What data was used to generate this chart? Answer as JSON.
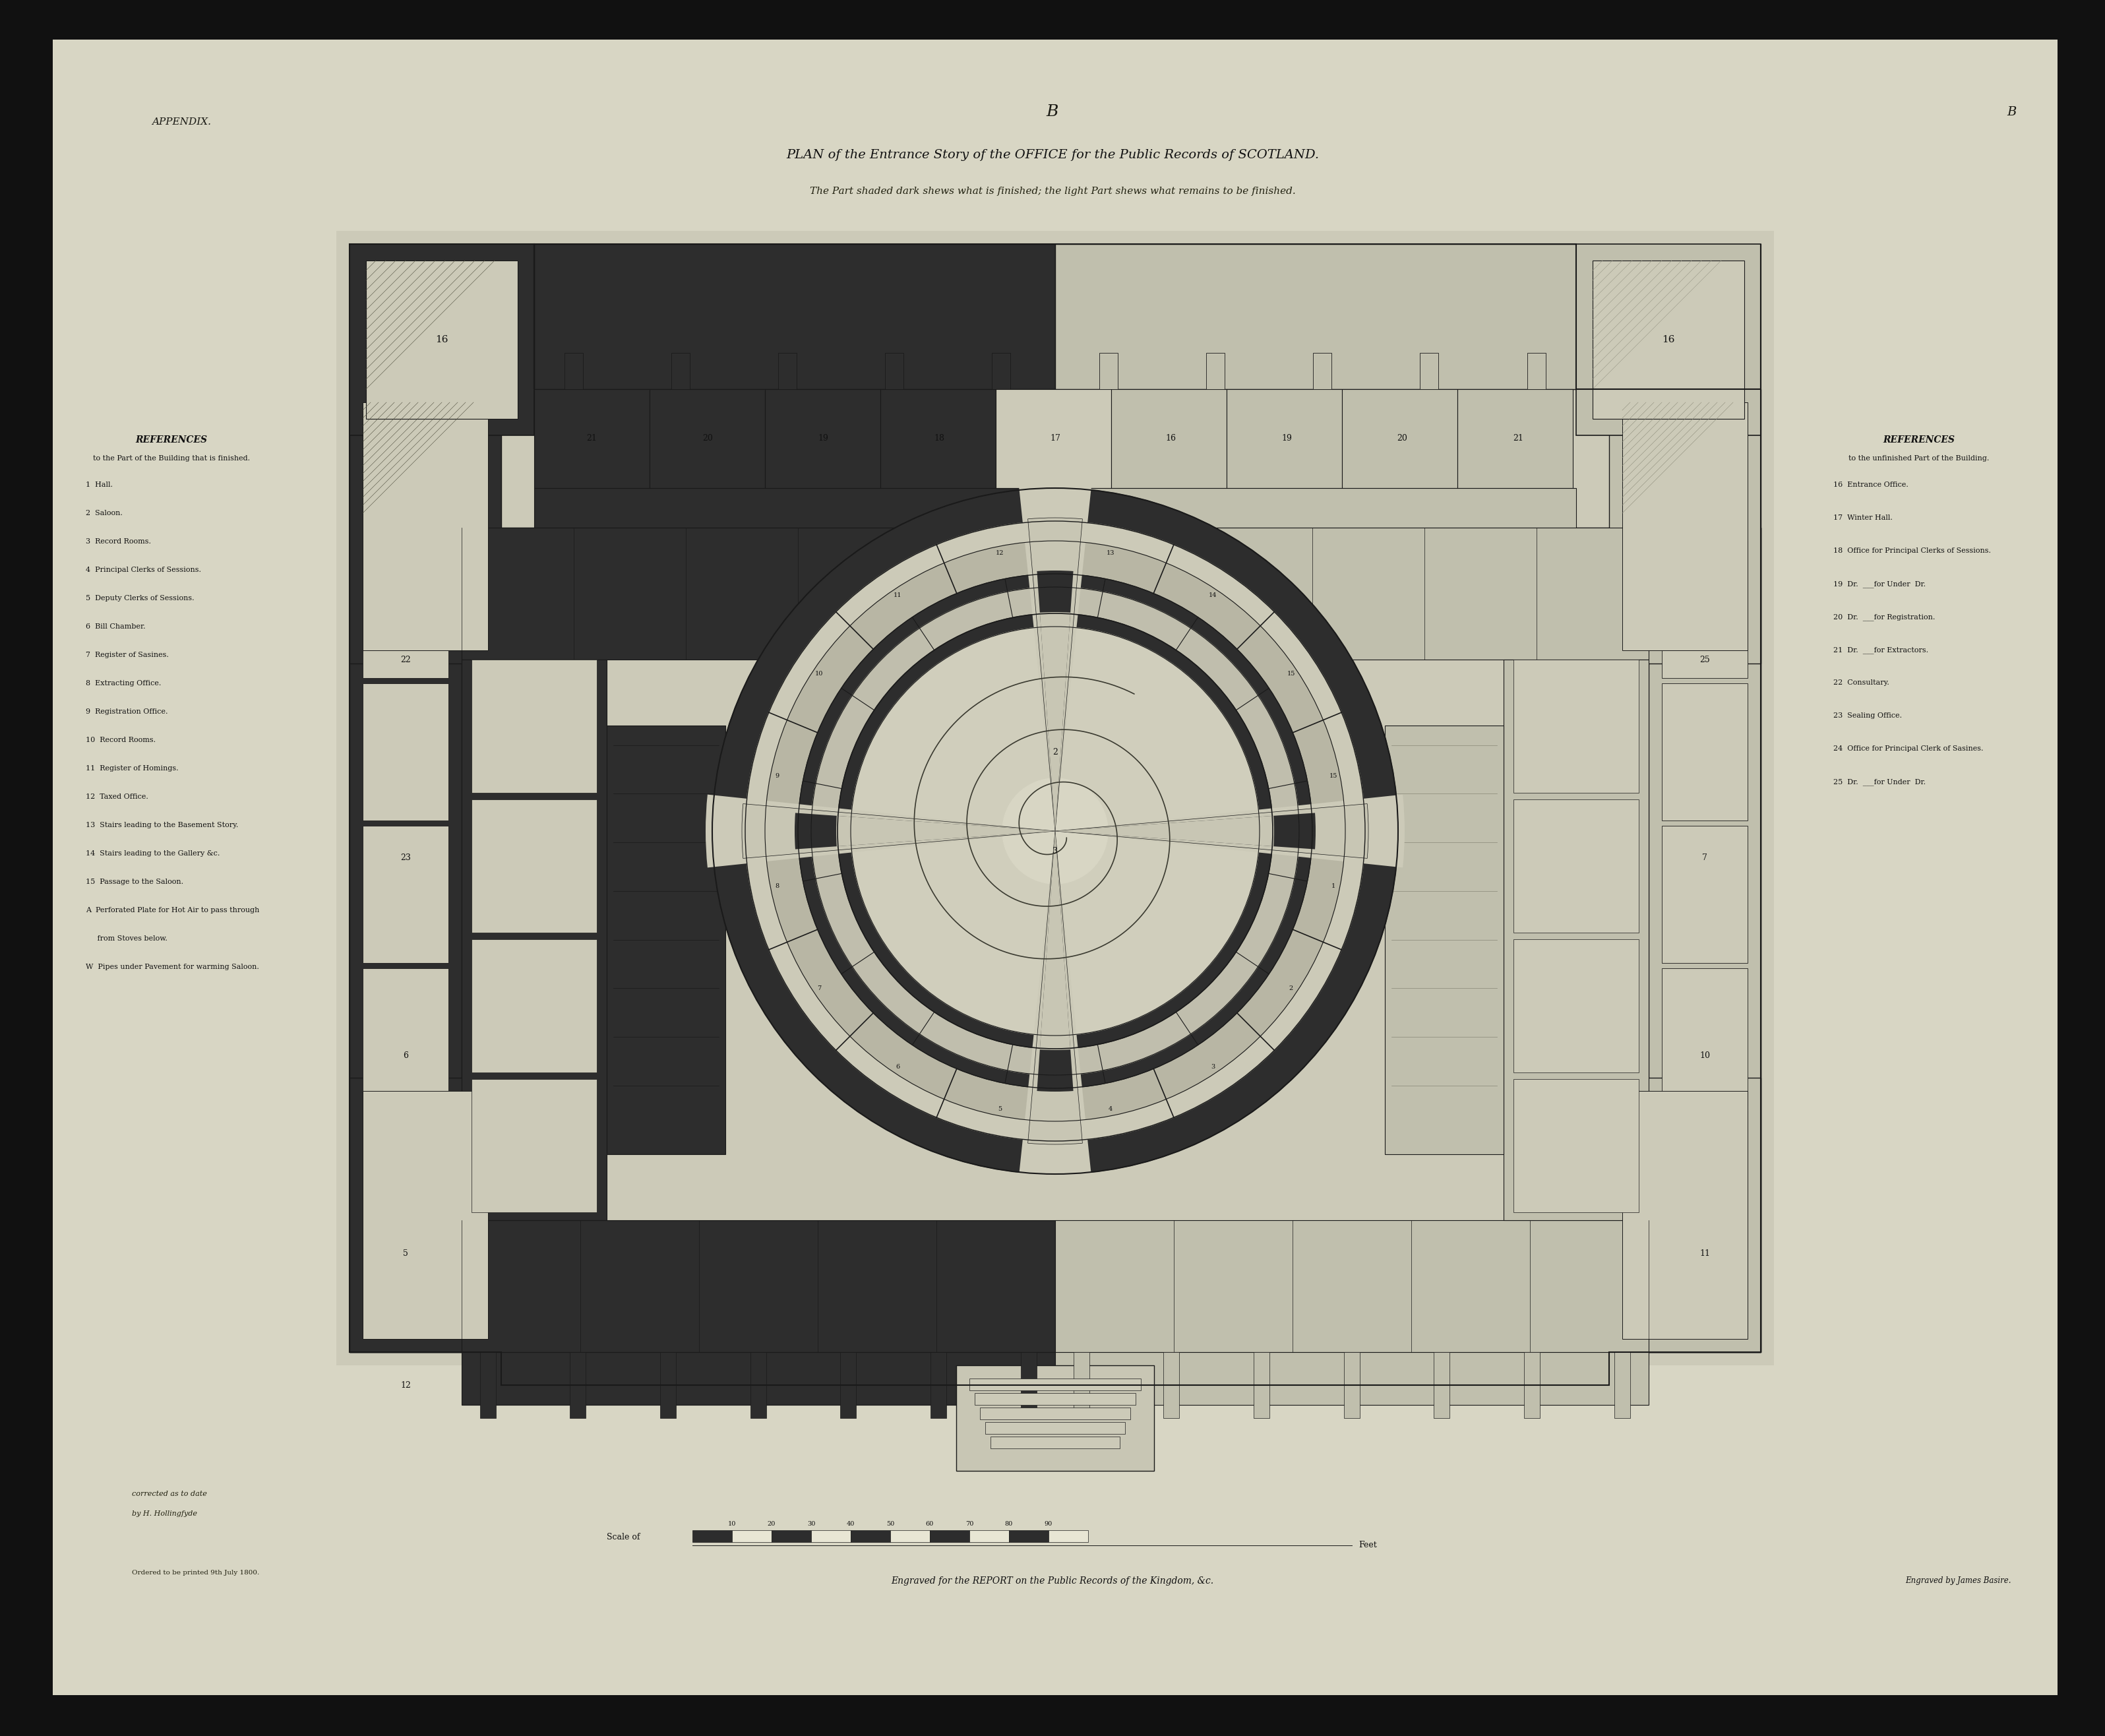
{
  "paper_color": "#d8d6c4",
  "bg_color": "#c8c8b0",
  "dark_bg": "#111111",
  "wall_dark": "#1a1a1a",
  "fill_dark": "#2d2d2d",
  "fill_mid": "#888880",
  "fill_light": "#c0bfad",
  "fill_bg": "#cccab8",
  "title_line1": "B",
  "title_line2": "PLAN of the Entrance Story of the OFFICE for the Public Records of SCOTLAND.",
  "title_line3": "The Part shaded dark shews what is finished; the light Part shews what remains to be finished.",
  "appendix_text": "APPENDIX.",
  "page_b_right": "B",
  "left_ref_title": "REFERENCES",
  "left_ref_sub": "to the Part of the Building that is finished.",
  "left_refs": [
    "1  Hall.",
    "2  Saloon.",
    "3  Record Rooms.",
    "4  Principal Clerks of Sessions.",
    "5  Deputy Clerks of Sessions.",
    "6  Bill Chamber.",
    "7  Register of Sasines.",
    "8  Extracting Office.",
    "9  Registration Office.",
    "10  Record Rooms.",
    "11  Register of Homings.",
    "12  Taxed Office.",
    "13  Stairs leading to the Basement Story.",
    "14  Stairs leading to the Gallery &c.",
    "15  Passage to the Saloon.",
    "A  Perforated Plate for Hot Air to pass through",
    "     from Stoves below.",
    "W  Pipes under Pavement for warming Saloon."
  ],
  "right_ref_title": "REFERENCES",
  "right_ref_sub": "to the unfinished Part of the Building.",
  "right_refs": [
    "16  Entrance Office.",
    "17  Winter Hall.",
    "18  Office for Principal Clerks of Sessions.",
    "19  Dr.  ___for Under  Dr.",
    "20  Dr.  ___for Registration.",
    "21  Dr.  ___for Extractors.",
    "22  Consultary.",
    "23  Sealing Office.",
    "24  Office for Principal Clerk of Sasines.",
    "25  Dr.  ___for Under  Dr."
  ],
  "bottom_left_italic": "corrected as to date",
  "bottom_left_italic2": "by H. Hollingfyde",
  "bottom_ordered": "Ordered to be printed 9th July 1800.",
  "bottom_center": "Engraved for the REPORT on the Public Records of the Kingdom, &c.",
  "bottom_right": "Engraved by James Basire."
}
